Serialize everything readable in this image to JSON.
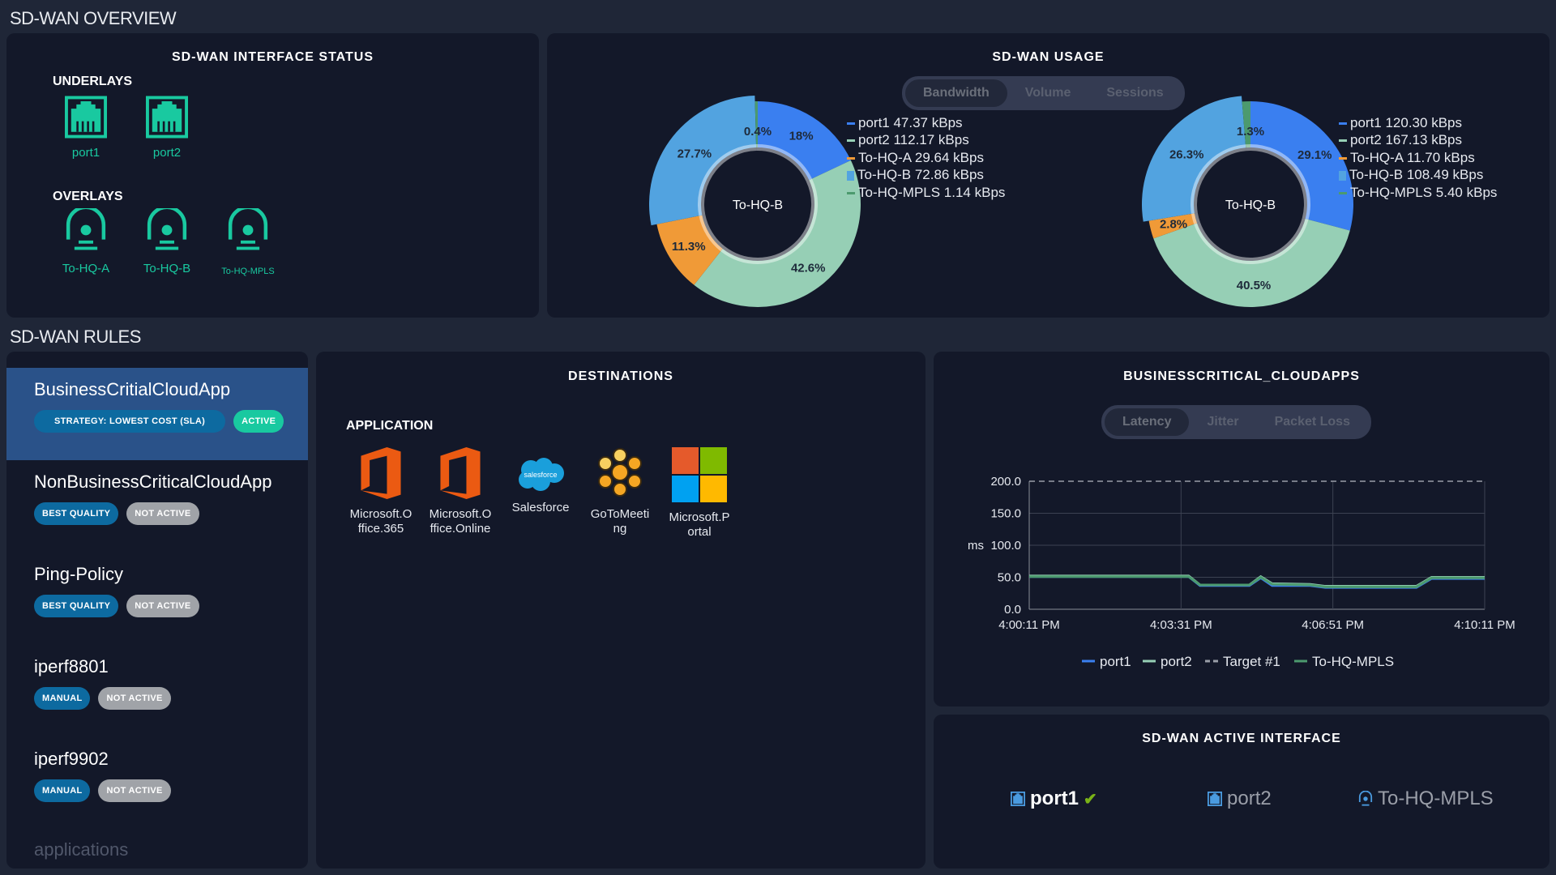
{
  "overview_title": "SD-WAN OVERVIEW",
  "interface_status": {
    "title": "SD-WAN INTERFACE STATUS",
    "underlays_label": "UNDERLAYS",
    "underlays": [
      "port1",
      "port2"
    ],
    "overlays_label": "OVERLAYS",
    "overlays": [
      "To-HQ-A",
      "To-HQ-B",
      "To-HQ-MPLS"
    ],
    "status_color": "#19c9a0"
  },
  "usage": {
    "title": "SD-WAN USAGE",
    "tabs": [
      "Bandwidth",
      "Volume",
      "Sessions"
    ],
    "active_tab": "Bandwidth"
  },
  "chart_data": [
    {
      "type": "pie",
      "center_label": "To-HQ-B",
      "highlighted": "To-HQ-B",
      "series": [
        {
          "name": "port1",
          "value": 47.37,
          "unit": "kBps",
          "percent_label": "18%",
          "legend": "port1 47.37 kBps",
          "color": "#3a7ff0"
        },
        {
          "name": "port2",
          "value": 112.17,
          "unit": "kBps",
          "percent_label": "42.6%",
          "legend": "port2 112.17 kBps",
          "color": "#96cfb5"
        },
        {
          "name": "To-HQ-A",
          "value": 29.64,
          "unit": "kBps",
          "percent_label": "11.3%",
          "legend": "To-HQ-A 29.64 kBps",
          "color": "#f09a37"
        },
        {
          "name": "To-HQ-B",
          "value": 72.86,
          "unit": "kBps",
          "percent_label": "27.7%",
          "legend": "To-HQ-B 72.86 kBps",
          "color": "#52a3e0"
        },
        {
          "name": "To-HQ-MPLS",
          "value": 1.14,
          "unit": "kBps",
          "percent_label": "0.4%",
          "legend": "To-HQ-MPLS 1.14 kBps",
          "color": "#4c9a6e"
        }
      ]
    },
    {
      "type": "pie",
      "center_label": "To-HQ-B",
      "highlighted": "To-HQ-B",
      "series": [
        {
          "name": "port1",
          "value": 120.3,
          "unit": "kBps",
          "percent_label": "29.1%",
          "legend": "port1 120.30 kBps",
          "color": "#3a7ff0"
        },
        {
          "name": "port2",
          "value": 167.13,
          "unit": "kBps",
          "percent_label": "40.5%",
          "legend": "port2 167.13 kBps",
          "color": "#96cfb5"
        },
        {
          "name": "To-HQ-A",
          "value": 11.7,
          "unit": "kBps",
          "percent_label": "2.8%",
          "legend": "To-HQ-A 11.70 kBps",
          "color": "#f09a37"
        },
        {
          "name": "To-HQ-B",
          "value": 108.49,
          "unit": "kBps",
          "percent_label": "26.3%",
          "legend": "To-HQ-B 108.49 kBps",
          "color": "#52a3e0"
        },
        {
          "name": "To-HQ-MPLS",
          "value": 5.4,
          "unit": "kBps",
          "percent_label": "1.3%",
          "legend": "To-HQ-MPLS 5.40 kBps",
          "color": "#4c9a6e"
        }
      ]
    },
    {
      "type": "line",
      "title": "BUSINESSCRITICAL_CLOUDAPPS",
      "ylabel": "ms",
      "ylim": [
        0,
        200
      ],
      "yticks": [
        "0.0",
        "50.0",
        "100.0",
        "150.0",
        "200.0"
      ],
      "xticks": [
        "4:00:11 PM",
        "4:03:31 PM",
        "4:06:51 PM",
        "4:10:11 PM"
      ],
      "xlim": [
        "4:00:11 PM",
        "4:10:11 PM"
      ],
      "grid": true,
      "legend": "bottom",
      "target": {
        "name": "Target #1",
        "value": 200,
        "color": "#9a9ea8"
      },
      "series": [
        {
          "name": "port1",
          "color": "#3a7ff0",
          "points": [
            [
              "4:00:11 PM",
              51
            ],
            [
              "4:03:41 PM",
              51
            ],
            [
              "4:03:56 PM",
              37
            ],
            [
              "4:05:01 PM",
              37
            ],
            [
              "4:05:16 PM",
              49
            ],
            [
              "4:05:31 PM",
              37
            ],
            [
              "4:06:21 PM",
              37
            ],
            [
              "4:06:41 PM",
              34
            ],
            [
              "4:08:41 PM",
              34
            ],
            [
              "4:09:01 PM",
              48
            ],
            [
              "4:10:11 PM",
              48
            ]
          ]
        },
        {
          "name": "port2",
          "color": "#96cfb5",
          "points": [
            [
              "4:00:11 PM",
              52
            ],
            [
              "4:03:41 PM",
              52
            ],
            [
              "4:03:56 PM",
              38
            ],
            [
              "4:05:01 PM",
              38
            ],
            [
              "4:05:16 PM",
              51
            ],
            [
              "4:05:31 PM",
              40
            ],
            [
              "4:06:21 PM",
              39
            ],
            [
              "4:06:41 PM",
              36
            ],
            [
              "4:08:41 PM",
              36
            ],
            [
              "4:09:01 PM",
              50
            ],
            [
              "4:10:11 PM",
              50
            ]
          ]
        },
        {
          "name": "To-HQ-MPLS",
          "color": "#4c9a6e",
          "points": [
            [
              "4:00:11 PM",
              51
            ],
            [
              "4:03:41 PM",
              51
            ],
            [
              "4:03:56 PM",
              38
            ],
            [
              "4:05:01 PM",
              38
            ],
            [
              "4:05:16 PM",
              50
            ],
            [
              "4:05:31 PM",
              39
            ],
            [
              "4:06:21 PM",
              38
            ],
            [
              "4:06:41 PM",
              35
            ],
            [
              "4:08:41 PM",
              35
            ],
            [
              "4:09:01 PM",
              49
            ],
            [
              "4:10:11 PM",
              49
            ]
          ]
        }
      ]
    }
  ],
  "rules_title": "SD-WAN RULES",
  "rules": [
    {
      "name": "BusinessCritialCloudApp",
      "strategy": "STRATEGY: LOWEST COST (SLA)",
      "status": "ACTIVE",
      "selected": true
    },
    {
      "name": "NonBusinessCriticalCloudApp",
      "strategy": "BEST QUALITY",
      "status": "NOT ACTIVE"
    },
    {
      "name": "Ping-Policy",
      "strategy": "BEST QUALITY",
      "status": "NOT ACTIVE"
    },
    {
      "name": "iperf8801",
      "strategy": "MANUAL",
      "status": "NOT ACTIVE"
    },
    {
      "name": "iperf9902",
      "strategy": "MANUAL",
      "status": "NOT ACTIVE"
    }
  ],
  "rules_more": "applications",
  "destinations": {
    "title": "DESTINATIONS",
    "application_label": "APPLICATION",
    "apps": [
      {
        "line1": "Microsoft.O",
        "line2": "ffice.365",
        "icon": "office-icon"
      },
      {
        "line1": "Microsoft.O",
        "line2": "ffice.Online",
        "icon": "office-icon"
      },
      {
        "line1": "Salesforce",
        "line2": "",
        "icon": "salesforce-icon",
        "logo_text": "salesforce"
      },
      {
        "line1": "GoToMeeti",
        "line2": "ng",
        "icon": "gotomeeting-icon"
      },
      {
        "line1": "Microsoft.P",
        "line2": "ortal",
        "icon": "microsoft-icon"
      }
    ]
  },
  "sla_chart": {
    "title": "BUSINESSCRITICAL_CLOUDAPPS",
    "tabs": [
      "Latency",
      "Jitter",
      "Packet Loss"
    ],
    "active_tab": "Latency"
  },
  "active_interface": {
    "title": "SD-WAN ACTIVE INTERFACE",
    "items": [
      {
        "name": "port1",
        "active": true
      },
      {
        "name": "port2",
        "active": false
      },
      {
        "name": "To-HQ-MPLS",
        "active": false
      }
    ],
    "check_color": "#7ab317"
  }
}
